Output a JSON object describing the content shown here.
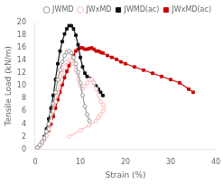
{
  "chart_data": {
    "type": "line",
    "xlabel": "Strain (%)",
    "ylabel": "Tensile Load (kN/m)",
    "xlim": [
      0,
      40
    ],
    "ylim": [
      0,
      20
    ],
    "xticks": [
      0,
      10,
      20,
      30,
      40
    ],
    "yticks": [
      0,
      2,
      4,
      6,
      8,
      10,
      12,
      14,
      16,
      18,
      20
    ],
    "grid": false,
    "legend": "upper right",
    "series": [
      {
        "name": "JWMD",
        "color": "#999999",
        "marker": "open_circle",
        "line_style": "solid",
        "x": [
          0,
          0.5,
          1.0,
          1.5,
          2.0,
          2.5,
          3.0,
          3.5,
          4.0,
          4.5,
          5.0,
          5.5,
          6.0,
          6.5,
          7.0,
          7.5,
          8.0,
          8.5,
          9.0,
          9.5,
          10.0,
          10.5,
          11.0,
          11.5,
          12.0
        ],
        "values": [
          0,
          0.3,
          0.7,
          1.2,
          1.8,
          2.8,
          4.0,
          5.5,
          7.2,
          9.0,
          11.0,
          12.5,
          13.8,
          14.8,
          15.3,
          15.5,
          15.2,
          14.5,
          13.5,
          12.2,
          10.5,
          8.5,
          6.8,
          5.5,
          4.5
        ]
      },
      {
        "name": "JWxMD",
        "color": "#ffbbbb",
        "marker": "open_circle",
        "line_style": "solid",
        "x": [
          0,
          0.5,
          1.0,
          1.5,
          2.0,
          2.5,
          3.0,
          3.5,
          4.0,
          4.5,
          5.0,
          5.5,
          6.0,
          6.5,
          7.0,
          7.5,
          8.0,
          8.5,
          9.0,
          9.5,
          10.0,
          10.5,
          11.0,
          11.5,
          12.0,
          12.5,
          13.0,
          13.5,
          14.0,
          14.5,
          15.0,
          15.2,
          15.0,
          14.5,
          14.0,
          13.5,
          12.0,
          10.0,
          7.5
        ],
        "values": [
          0,
          0.2,
          0.5,
          0.9,
          1.5,
          2.2,
          3.2,
          4.5,
          6.0,
          7.5,
          9.0,
          10.5,
          12.0,
          13.0,
          13.8,
          14.2,
          14.0,
          13.5,
          12.5,
          11.0,
          10.0,
          9.5,
          10.0,
          10.5,
          11.0,
          11.0,
          10.5,
          9.5,
          8.5,
          7.5,
          7.0,
          6.5,
          6.0,
          5.5,
          5.0,
          4.5,
          3.8,
          3.0,
          2.0
        ]
      },
      {
        "name": "JWMD(ac)",
        "color": "#111111",
        "marker": "square",
        "line_style": "solid",
        "x": [
          0,
          0.5,
          1.0,
          1.5,
          2.0,
          2.5,
          3.0,
          3.5,
          4.0,
          4.5,
          5.0,
          5.5,
          6.0,
          6.5,
          7.0,
          7.5,
          8.0,
          8.5,
          9.0,
          9.5,
          10.0,
          10.5,
          11.0,
          11.5,
          12.0,
          12.5,
          13.0,
          13.5,
          14.0,
          14.5,
          15.0
        ],
        "values": [
          0,
          0.3,
          0.6,
          1.2,
          2.0,
          3.2,
          4.8,
          6.5,
          8.5,
          11.0,
          13.5,
          15.5,
          17.0,
          18.2,
          19.0,
          19.5,
          19.5,
          19.0,
          18.0,
          16.5,
          14.5,
          13.0,
          12.0,
          11.5,
          11.2,
          11.0,
          10.5,
          10.0,
          9.5,
          9.0,
          8.5
        ]
      },
      {
        "name": "JWxMD(ac)",
        "color": "#cc0000",
        "marker": "square",
        "line_style": "solid",
        "x": [
          0,
          0.5,
          1.0,
          1.5,
          2.0,
          2.5,
          3.0,
          3.5,
          4.0,
          4.5,
          5.0,
          5.5,
          6.0,
          6.5,
          7.0,
          7.5,
          8.0,
          8.5,
          9.0,
          9.5,
          10.0,
          10.5,
          11.0,
          11.5,
          12.0,
          12.5,
          13.0,
          13.5,
          14.0,
          14.5,
          15.0,
          16.0,
          17.0,
          18.0,
          19.0,
          20.0,
          22.0,
          24.0,
          26.0,
          28.0,
          30.0,
          32.0,
          34.0,
          35.0
        ],
        "values": [
          0,
          0.2,
          0.5,
          0.9,
          1.5,
          2.2,
          3.0,
          4.0,
          5.2,
          6.5,
          7.8,
          9.0,
          10.2,
          11.3,
          12.3,
          13.2,
          14.0,
          14.8,
          15.5,
          15.8,
          16.0,
          16.0,
          15.8,
          15.8,
          15.9,
          16.0,
          15.8,
          15.5,
          15.5,
          15.3,
          15.2,
          14.8,
          14.5,
          14.2,
          13.8,
          13.5,
          13.0,
          12.5,
          12.0,
          11.5,
          11.0,
          10.5,
          9.5,
          9.0
        ]
      }
    ]
  }
}
